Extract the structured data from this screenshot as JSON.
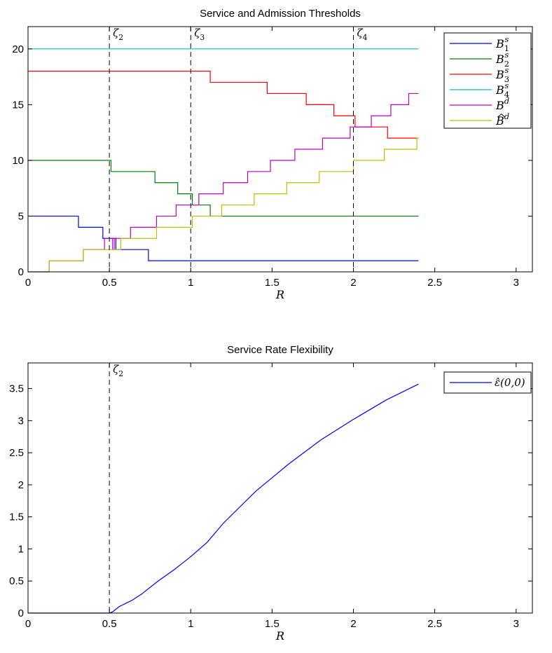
{
  "colors": {
    "B1s": "#0000ff",
    "B2s": "#008000",
    "B3s": "#ff0000",
    "B4s": "#00bfbf",
    "Bd": "#bf00bf",
    "Bhatd": "#bfbf00",
    "eps": "#0000ff",
    "axis": "#000000",
    "markers": "#000000"
  },
  "chart_data": [
    {
      "type": "line",
      "title": "Service and Admission Thresholds",
      "xlabel": "R",
      "ylabel": "",
      "xlim": [
        0,
        3.1
      ],
      "ylim": [
        0,
        22
      ],
      "xticks": [
        "0",
        "0.5",
        "1",
        "1.5",
        "2",
        "2.5",
        "3"
      ],
      "yticks": [
        "0",
        "5",
        "10",
        "15",
        "20"
      ],
      "grid": false,
      "legend_position": "top-right",
      "markers": [
        {
          "x": 0.5,
          "base": "ζ",
          "sub": "2"
        },
        {
          "x": 1.0,
          "base": "ζ",
          "sub": "3"
        },
        {
          "x": 2.0,
          "base": "ζ",
          "sub": "4"
        }
      ],
      "series": [
        {
          "key": "B1s",
          "base": "B",
          "sub": "1",
          "sup": "s",
          "hat": false,
          "points": [
            [
              0,
              5
            ],
            [
              0.31,
              5
            ],
            [
              0.31,
              4
            ],
            [
              0.46,
              4
            ],
            [
              0.46,
              3
            ],
            [
              0.54,
              3
            ],
            [
              0.54,
              2
            ],
            [
              0.74,
              2
            ],
            [
              0.74,
              1
            ],
            [
              2.4,
              1
            ]
          ]
        },
        {
          "key": "B2s",
          "base": "B",
          "sub": "2",
          "sup": "s",
          "hat": false,
          "points": [
            [
              0,
              10
            ],
            [
              0.51,
              10
            ],
            [
              0.51,
              9
            ],
            [
              0.78,
              9
            ],
            [
              0.78,
              8
            ],
            [
              0.92,
              8
            ],
            [
              0.92,
              7
            ],
            [
              1.01,
              7
            ],
            [
              1.01,
              6
            ],
            [
              1.12,
              6
            ],
            [
              1.12,
              5
            ],
            [
              2.4,
              5
            ]
          ]
        },
        {
          "key": "B3s",
          "base": "B",
          "sub": "3",
          "sup": "s",
          "hat": false,
          "points": [
            [
              0,
              18
            ],
            [
              1.12,
              18
            ],
            [
              1.12,
              17
            ],
            [
              1.47,
              17
            ],
            [
              1.47,
              16
            ],
            [
              1.71,
              16
            ],
            [
              1.71,
              15
            ],
            [
              1.88,
              15
            ],
            [
              1.88,
              14
            ],
            [
              2.01,
              14
            ],
            [
              2.01,
              13
            ],
            [
              2.21,
              13
            ],
            [
              2.21,
              12
            ],
            [
              2.4,
              12
            ]
          ]
        },
        {
          "key": "B4s",
          "base": "B",
          "sub": "4",
          "sup": "s",
          "hat": false,
          "points": [
            [
              0,
              20
            ],
            [
              2.4,
              20
            ]
          ]
        },
        {
          "key": "Bd",
          "base": "B",
          "sub": "",
          "sup": "d",
          "hat": false,
          "points": [
            [
              0,
              0
            ],
            [
              0.13,
              0
            ],
            [
              0.13,
              1
            ],
            [
              0.34,
              1
            ],
            [
              0.34,
              2
            ],
            [
              0.47,
              2
            ],
            [
              0.47,
              3
            ],
            [
              0.52,
              3
            ],
            [
              0.52,
              2
            ],
            [
              0.53,
              2
            ],
            [
              0.53,
              3
            ],
            [
              0.63,
              3
            ],
            [
              0.63,
              4
            ],
            [
              0.79,
              4
            ],
            [
              0.79,
              5
            ],
            [
              0.91,
              5
            ],
            [
              0.91,
              6
            ],
            [
              1.05,
              6
            ],
            [
              1.05,
              7
            ],
            [
              1.2,
              7
            ],
            [
              1.2,
              8
            ],
            [
              1.35,
              8
            ],
            [
              1.35,
              9
            ],
            [
              1.49,
              9
            ],
            [
              1.49,
              10
            ],
            [
              1.64,
              10
            ],
            [
              1.64,
              11
            ],
            [
              1.81,
              11
            ],
            [
              1.81,
              12
            ],
            [
              1.98,
              12
            ],
            [
              1.98,
              13
            ],
            [
              2.11,
              13
            ],
            [
              2.11,
              14
            ],
            [
              2.23,
              14
            ],
            [
              2.23,
              15
            ],
            [
              2.34,
              15
            ],
            [
              2.34,
              16
            ],
            [
              2.4,
              16
            ]
          ]
        },
        {
          "key": "Bhatd",
          "base": "B",
          "sub": "",
          "sup": "d",
          "hat": true,
          "points": [
            [
              0,
              0
            ],
            [
              0.13,
              0
            ],
            [
              0.13,
              1
            ],
            [
              0.34,
              1
            ],
            [
              0.34,
              2
            ],
            [
              0.57,
              2
            ],
            [
              0.57,
              3
            ],
            [
              0.79,
              3
            ],
            [
              0.79,
              4
            ],
            [
              1.01,
              4
            ],
            [
              1.01,
              5
            ],
            [
              1.19,
              5
            ],
            [
              1.19,
              6
            ],
            [
              1.39,
              6
            ],
            [
              1.39,
              7
            ],
            [
              1.59,
              7
            ],
            [
              1.59,
              8
            ],
            [
              1.79,
              8
            ],
            [
              1.79,
              9
            ],
            [
              2.0,
              9
            ],
            [
              2.0,
              10
            ],
            [
              2.19,
              10
            ],
            [
              2.19,
              11
            ],
            [
              2.39,
              11
            ],
            [
              2.39,
              12
            ],
            [
              2.4,
              12
            ]
          ]
        }
      ]
    },
    {
      "type": "line",
      "title": "Service Rate Flexibility",
      "xlabel": "R",
      "ylabel": "",
      "xlim": [
        0,
        3.1
      ],
      "ylim": [
        0,
        3.9
      ],
      "xticks": [
        "0",
        "0.5",
        "1",
        "1.5",
        "2",
        "2.5",
        "3"
      ],
      "yticks": [
        "0",
        "0.5",
        "1",
        "1.5",
        "2",
        "2.5",
        "3",
        "3.5"
      ],
      "grid": false,
      "legend_position": "top-right",
      "markers": [
        {
          "x": 0.5,
          "base": "ζ",
          "sub": "2"
        }
      ],
      "series": [
        {
          "key": "eps",
          "label": "ε̂(0,0)",
          "points": [
            [
              0,
              0
            ],
            [
              0.5,
              0
            ],
            [
              0.52,
              0.02
            ],
            [
              0.56,
              0.1
            ],
            [
              0.64,
              0.2
            ],
            [
              0.7,
              0.3
            ],
            [
              0.8,
              0.5
            ],
            [
              0.9,
              0.68
            ],
            [
              1.0,
              0.88
            ],
            [
              1.1,
              1.1
            ],
            [
              1.2,
              1.4
            ],
            [
              1.4,
              1.9
            ],
            [
              1.6,
              2.32
            ],
            [
              1.8,
              2.7
            ],
            [
              2.0,
              3.02
            ],
            [
              2.2,
              3.32
            ],
            [
              2.4,
              3.57
            ]
          ]
        }
      ]
    }
  ]
}
